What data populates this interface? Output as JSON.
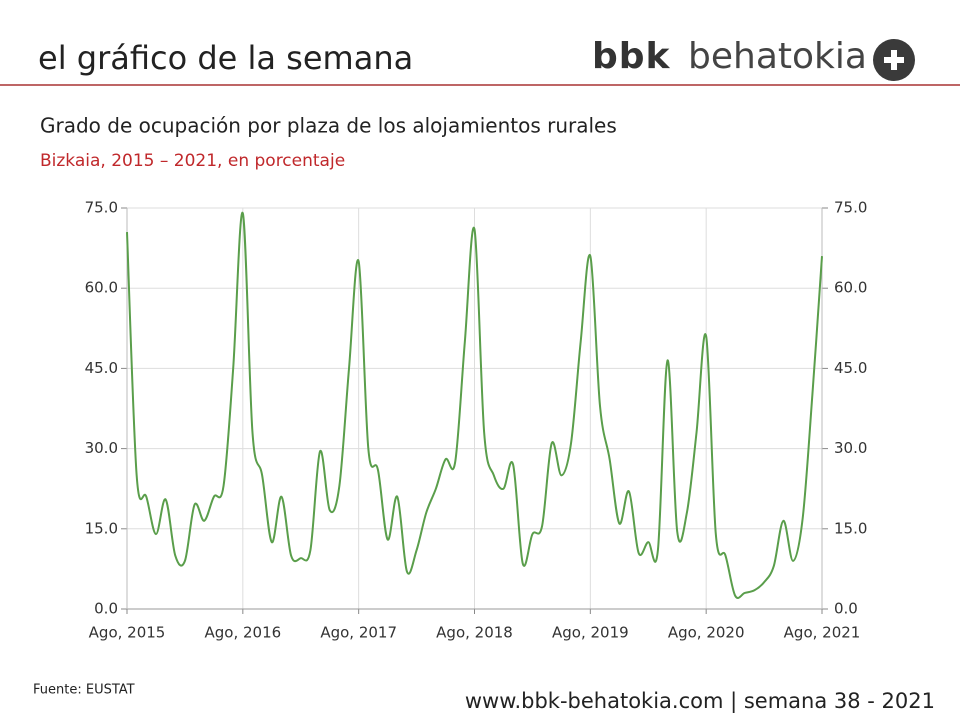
{
  "header": {
    "title": "el gráfico de la semana",
    "logo_bold": "bbk",
    "logo_light": "behatokia"
  },
  "chart_data": {
    "type": "line",
    "title": "Grado de ocupación por plaza de los alojamientos rurales",
    "subtitle": "Bizkaia, 2015 – 2021, en porcentaje",
    "categories": [
      "Ago, 2015",
      null,
      null,
      null,
      null,
      null,
      null,
      null,
      null,
      null,
      null,
      null,
      "Ago, 2016",
      null,
      null,
      null,
      null,
      null,
      null,
      null,
      null,
      null,
      null,
      null,
      "Ago, 2017",
      null,
      null,
      null,
      null,
      null,
      null,
      null,
      null,
      null,
      null,
      null,
      "Ago, 2018",
      null,
      null,
      null,
      null,
      null,
      null,
      null,
      null,
      null,
      null,
      null,
      "Ago, 2019",
      null,
      null,
      null,
      null,
      null,
      null,
      null,
      null,
      null,
      null,
      null,
      "Ago, 2020",
      null,
      null,
      null,
      null,
      null,
      null,
      null,
      null,
      null,
      null,
      null,
      "Ago, 2021"
    ],
    "series": [
      {
        "color": "#5a9e4b",
        "values": [
          70.5,
          25,
          21,
          14,
          20.5,
          10,
          9,
          19.5,
          16.5,
          21,
          23,
          45,
          74,
          33,
          25,
          12.5,
          21,
          10,
          9.5,
          11,
          29.5,
          18.5,
          23,
          45,
          65,
          30,
          26,
          13,
          21,
          7,
          11,
          18,
          22.5,
          28,
          27.5,
          50,
          71,
          33,
          25,
          22.5,
          27,
          8.5,
          14,
          15.5,
          31,
          25,
          31,
          50,
          66,
          38,
          28,
          16,
          22,
          10.5,
          12.5,
          11,
          46.5,
          14.5,
          18,
          33,
          51,
          14,
          10,
          2.5,
          3,
          3.5,
          5,
          8,
          16.5,
          9,
          17,
          40,
          66
        ]
      }
    ],
    "ylim": [
      0,
      75
    ],
    "yticks": [
      {
        "value": 0,
        "label": "0.0"
      },
      {
        "value": 15,
        "label": "15.0"
      },
      {
        "value": 30,
        "label": "30.0"
      },
      {
        "value": 45,
        "label": "45.0"
      },
      {
        "value": 60,
        "label": "60.0"
      },
      {
        "value": 75,
        "label": "75.0"
      }
    ],
    "y2lim": [
      0,
      75
    ],
    "y2ticks": [
      {
        "value": 0,
        "label": "0.0"
      },
      {
        "value": 15,
        "label": "15.0"
      },
      {
        "value": 30,
        "label": "30.0"
      },
      {
        "value": 45,
        "label": "45.0"
      },
      {
        "value": 60,
        "label": "60.0"
      },
      {
        "value": 75,
        "label": "75.0"
      }
    ],
    "grid": true,
    "source": "Fuente: EUSTAT"
  },
  "footer": {
    "text": "www.bbk-behatokia.com | semana 38 - 2021"
  }
}
